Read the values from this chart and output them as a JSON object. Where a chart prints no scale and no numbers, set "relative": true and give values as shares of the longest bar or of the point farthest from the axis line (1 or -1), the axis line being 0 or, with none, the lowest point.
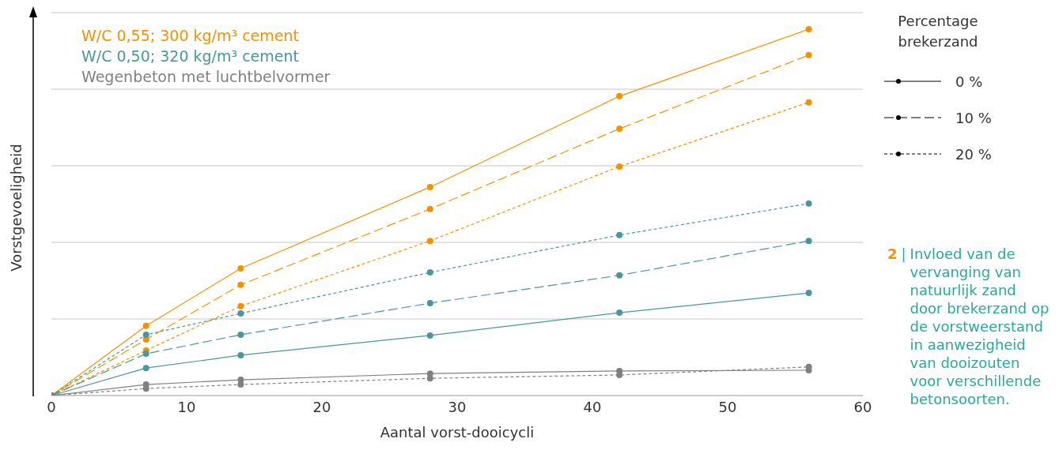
{
  "chart_data": {
    "type": "line",
    "relative": true,
    "xlabel": "Aantal vorst-dooicycli",
    "ylabel": "Vorstgevoeligheid",
    "legend_title": "Percentage brekerzand",
    "legend": "top left",
    "grid": "y",
    "marker": "circle",
    "x": [
      0,
      7,
      14,
      28,
      42,
      56
    ],
    "xlim": [
      0,
      60
    ],
    "xticks": [
      0,
      10,
      20,
      30,
      40,
      50,
      60
    ],
    "series": [
      {
        "name": "W/C 0,55; 300 kg/m³ cement",
        "color": "#f39200",
        "line_style": "solid",
        "values": [
          0,
          0.19,
          0.347,
          0.569,
          0.817,
          1
        ]
      },
      {
        "color": "#f39200",
        "line_style": "dashed",
        "values": [
          0,
          0.153,
          0.302,
          0.509,
          0.728,
          0.929
        ]
      },
      {
        "color": "#f39200",
        "line_style": "dotted",
        "values": [
          0,
          0.123,
          0.244,
          0.422,
          0.625,
          0.8
        ]
      },
      {
        "name": "W/C 0,50; 320 kg/m³ cement",
        "color": "#4a96a0",
        "line_style": "solid",
        "values": [
          0,
          0.075,
          0.11,
          0.164,
          0.226,
          0.28
        ]
      },
      {
        "color": "#4a96a0",
        "line_style": "dashed",
        "values": [
          0,
          0.114,
          0.166,
          0.252,
          0.328,
          0.422
        ]
      },
      {
        "color": "#4a96a0",
        "line_style": "dotted",
        "values": [
          0,
          0.166,
          0.224,
          0.336,
          0.438,
          0.524
        ]
      },
      {
        "name": "Wegenbeton met luchtbelvormer",
        "color": "#808080",
        "line_style": "solid",
        "values": [
          0,
          0.03,
          0.043,
          0.06,
          0.067,
          0.069
        ]
      },
      {
        "color": "#808080",
        "line_style": "dotted",
        "values": [
          0,
          0.019,
          0.03,
          0.047,
          0.056,
          0.078
        ]
      }
    ],
    "annotations": [
      "0 %",
      "10 %",
      "20 %",
      "2 | Invloed van de vervanging van natuurlijk zand door brekerzand op de vorstweerstand in aanwezigheid van dooizouten voor verschillende betonsoorten."
    ]
  }
}
